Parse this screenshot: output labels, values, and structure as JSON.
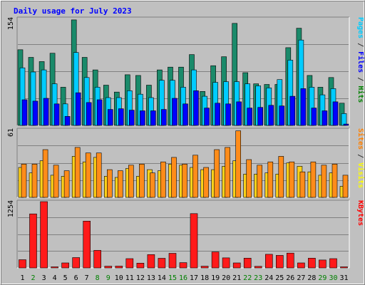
{
  "chart_data": {
    "type": "bar",
    "title": "Daily usage for July 2023",
    "categories": [
      "1",
      "2",
      "3",
      "4",
      "5",
      "6",
      "7",
      "8",
      "9",
      "10",
      "11",
      "12",
      "13",
      "14",
      "15",
      "16",
      "17",
      "18",
      "19",
      "20",
      "21",
      "22",
      "23",
      "24",
      "25",
      "26",
      "27",
      "28",
      "29",
      "30",
      "31"
    ],
    "weekend_days": [
      "2",
      "8",
      "9",
      "15",
      "16",
      "22",
      "23",
      "29",
      "30"
    ],
    "grid": true,
    "legend": "right",
    "panels": [
      {
        "name": "hits-files-pages",
        "ymax": 154,
        "ymax_label": "154",
        "axis_label_parts": [
          {
            "text": "Pages",
            "color": "#00ccff"
          },
          {
            "text": " / ",
            "color": "#333333"
          },
          {
            "text": "Files",
            "color": "#0000ff"
          },
          {
            "text": " / ",
            "color": "#333333"
          },
          {
            "text": "Hits",
            "color": "#008000"
          }
        ],
        "series": [
          {
            "name": "Hits",
            "color": "#1a8a6a",
            "values": [
              109,
              98,
              92,
              104,
              55,
              152,
              98,
              80,
              58,
              48,
              73,
              72,
              58,
              80,
              84,
              84,
              102,
              49,
              86,
              99,
              147,
              76,
              60,
              59,
              59,
              112,
              140,
              72,
              55,
              69,
              32
            ]
          },
          {
            "name": "Files",
            "color": "#00ccff",
            "values": [
              83,
              77,
              80,
              60,
              31,
              105,
              69,
              55,
              40,
              40,
              50,
              45,
              40,
              65,
              65,
              55,
              80,
              42,
              62,
              63,
              63,
              60,
              57,
              54,
              66,
              94,
              123,
              55,
              44,
              53,
              17
            ]
          },
          {
            "name": "Pages",
            "color": "#0000ff",
            "values": [
              37,
              35,
              39,
              31,
              13,
              47,
              33,
              37,
              23,
              24,
              22,
              21,
              21,
              23,
              39,
              31,
              50,
              25,
              32,
              31,
              34,
              25,
              26,
              29,
              28,
              42,
              53,
              25,
              21,
              34,
              2
            ]
          }
        ]
      },
      {
        "name": "visits-sites",
        "ymax": 61,
        "ymax_label": "61",
        "axis_label_parts": [
          {
            "text": "Sites",
            "color": "#ff8000"
          },
          {
            "text": " / ",
            "color": "#333333"
          },
          {
            "text": "Visits",
            "color": "#ffff00"
          }
        ],
        "series": [
          {
            "name": "Visits",
            "color": "#ffd21a",
            "values": [
              27,
              22,
              33,
              20,
              19,
              37,
              32,
              36,
              19,
              18,
              26,
              19,
              25,
              24,
              30,
              29,
              27,
              25,
              25,
              28,
              33,
              21,
              21,
              22,
              21,
              31,
              28,
              23,
              20,
              22,
              10
            ]
          },
          {
            "name": "Sites",
            "color": "#ff8c1a",
            "values": [
              30,
              30,
              43,
              29,
              24,
              45,
              40,
              40,
              25,
              24,
              29,
              30,
              22,
              32,
              36,
              30,
              38,
              27,
              43,
              45,
              60,
              34,
              29,
              32,
              37,
              32,
              23,
              32,
              29,
              30,
              20
            ]
          }
        ]
      },
      {
        "name": "kbytes",
        "ymax": 1254,
        "ymax_label": "1254",
        "axis_label_parts": [
          {
            "text": "KBytes",
            "color": "#ff0000"
          }
        ],
        "series": [
          {
            "name": "KBytes",
            "color": "#ff1a1a",
            "values": [
              155,
              1022,
              1254,
              20,
              95,
              195,
              886,
              332,
              32,
              34,
              175,
              90,
              252,
              182,
              277,
              100,
              1028,
              32,
              302,
              190,
              95,
              185,
              29,
              257,
              237,
              280,
              95,
              185,
              150,
              175,
              20
            ]
          }
        ]
      }
    ]
  }
}
